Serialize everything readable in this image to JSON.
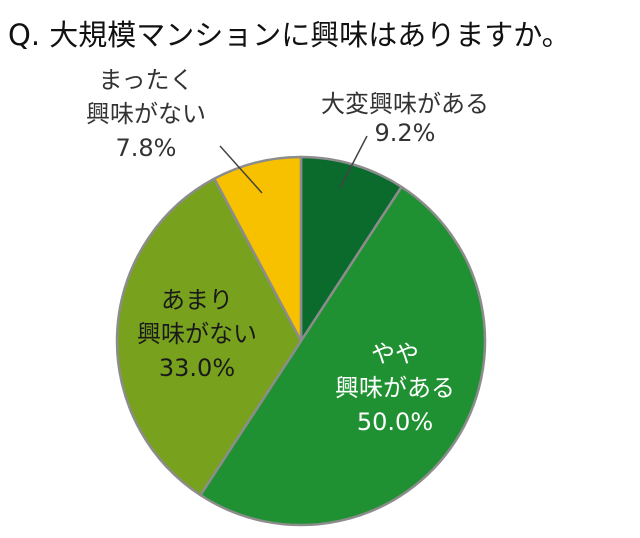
{
  "chart_data": {
    "type": "pie",
    "title": "Q. 大規模マンションに興味はありますか。",
    "start_angle_deg": 0,
    "direction": "clockwise",
    "slices": [
      {
        "key": "very",
        "lines": [
          "大変興味がある",
          "9.2%"
        ],
        "value": 9.2,
        "color": "#0b6b2d",
        "text_color": "#333333"
      },
      {
        "key": "somewhat",
        "lines": [
          "やや",
          "興味がある",
          "50.0%"
        ],
        "value": 50.0,
        "color": "#1f9132",
        "text_color": "#ffffff"
      },
      {
        "key": "not-much",
        "lines": [
          "あまり",
          "興味がない",
          "33.0%"
        ],
        "value": 33.0,
        "color": "#78a21e",
        "text_color": "#1a1a1a"
      },
      {
        "key": "not-at-all",
        "lines": [
          "まったく",
          "興味がない",
          "7.8%"
        ],
        "value": 7.8,
        "color": "#f7c100",
        "text_color": "#333333"
      }
    ]
  }
}
